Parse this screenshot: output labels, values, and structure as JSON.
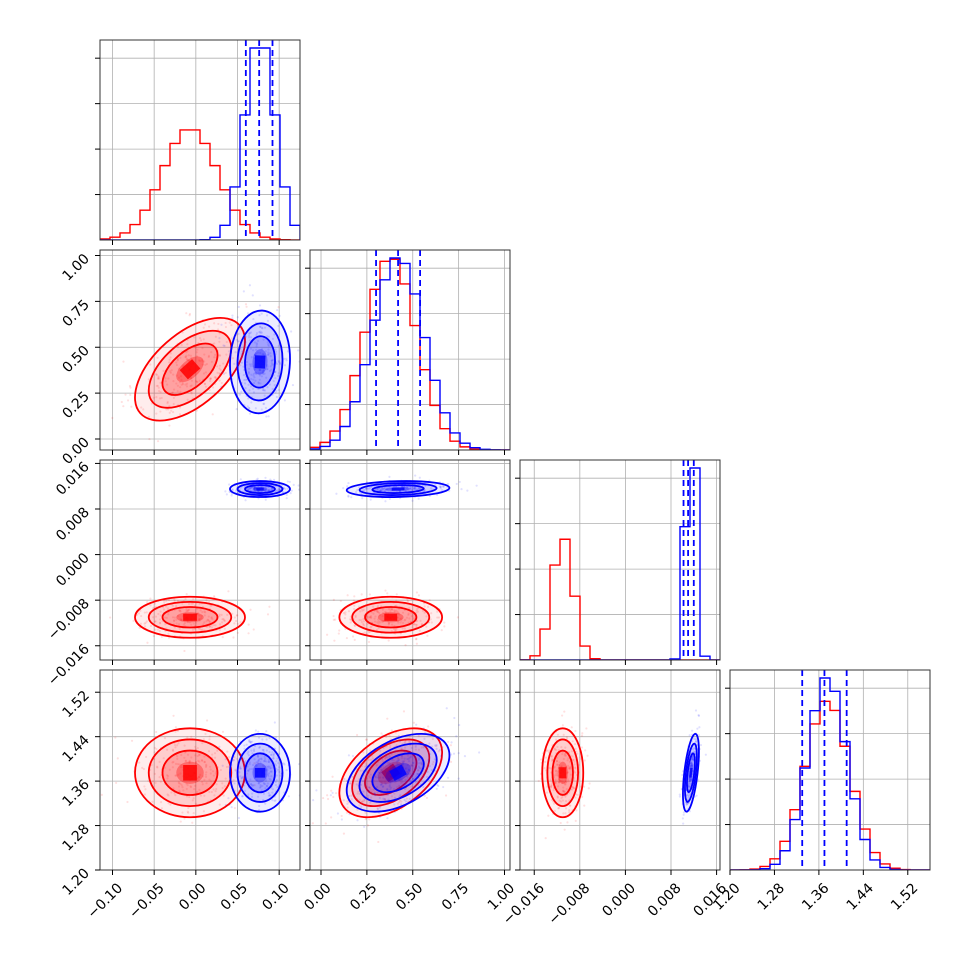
{
  "chart_data": {
    "type": "scatter",
    "title": "",
    "variables": [
      {
        "ticks": [
          -0.1,
          -0.05,
          0.0,
          0.05,
          0.1
        ],
        "tick_labels": [
          "−0.10",
          "−0.05",
          "0.00",
          "0.05",
          "0.10"
        ],
        "range": [
          -0.115,
          0.125
        ]
      },
      {
        "ticks": [
          0.0,
          0.25,
          0.5,
          0.75,
          1.0
        ],
        "tick_labels": [
          "0.00",
          "0.25",
          "0.50",
          "0.75",
          "1.00"
        ],
        "range": [
          -0.06,
          1.03
        ]
      },
      {
        "ticks": [
          -0.016,
          -0.008,
          0.0,
          0.008,
          0.016
        ],
        "tick_labels": [
          "−0.016",
          "−0.008",
          "0.000",
          "0.008",
          "0.016"
        ],
        "range": [
          -0.0185,
          0.0166
        ]
      },
      {
        "ticks": [
          1.2,
          1.28,
          1.36,
          1.44,
          1.52
        ],
        "tick_labels": [
          "1.20",
          "1.28",
          "1.36",
          "1.44",
          "1.52"
        ],
        "range": [
          1.2,
          1.56
        ]
      }
    ],
    "series": [
      {
        "color": "#ff0000",
        "mean": [
          -0.007,
          0.38,
          -0.011,
          1.375
        ],
        "std": [
          0.033,
          0.14,
          0.0018,
          0.04
        ]
      },
      {
        "color": "#0000ff",
        "mean": [
          0.077,
          0.42,
          0.0115,
          1.375
        ],
        "std": [
          0.018,
          0.14,
          0.0007,
          0.035
        ]
      }
    ],
    "quantile_lines": {
      "color": "#0000ff",
      "values": [
        [
          0.06,
          0.076,
          0.092
        ],
        [
          0.3,
          0.42,
          0.54
        ],
        [
          0.0102,
          0.011,
          0.012
        ],
        [
          1.33,
          1.37,
          1.41
        ]
      ]
    },
    "grid": true
  }
}
